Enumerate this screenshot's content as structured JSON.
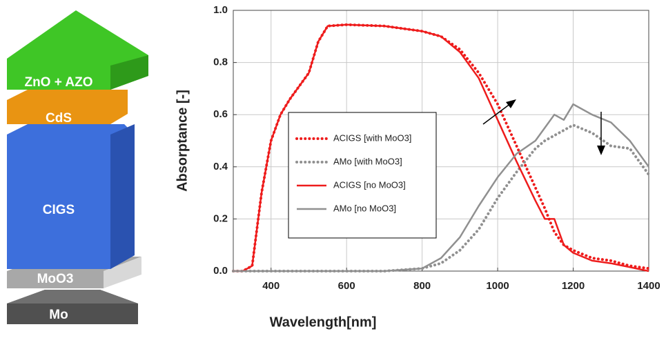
{
  "diagram": {
    "layers": [
      "ZnO + AZO",
      "CdS",
      "CIGS",
      "MoO3",
      "Mo"
    ]
  },
  "chart_data": {
    "type": "line",
    "xlabel": "Wavelength[nm]",
    "ylabel": "Absorptance [-]",
    "xlim": [
      300,
      1400
    ],
    "xticks": [
      400,
      600,
      800,
      1000,
      1200,
      1400
    ],
    "ylim": [
      0,
      1
    ],
    "yticks": [
      {
        "value": 0,
        "label": "0.0"
      },
      0.2,
      0.4,
      0.6,
      0.8,
      {
        "value": 1,
        "label": "1.0"
      }
    ],
    "grid": true,
    "x": [
      300,
      325,
      350,
      375,
      400,
      425,
      450,
      475,
      500,
      525,
      550,
      600,
      700,
      800,
      850,
      900,
      950,
      1000,
      1050,
      1100,
      1125,
      1150,
      1175,
      1200,
      1250,
      1300,
      1350,
      1400
    ],
    "series": [
      {
        "name": "ACIGS [with MoO3]",
        "color": "#ee1c1c",
        "style": "dotted",
        "values": [
          0,
          0,
          0.02,
          0.3,
          0.5,
          0.6,
          0.66,
          0.71,
          0.76,
          0.88,
          0.94,
          0.945,
          0.94,
          0.92,
          0.9,
          0.85,
          0.76,
          0.64,
          0.48,
          0.32,
          0.24,
          0.15,
          0.1,
          0.08,
          0.05,
          0.04,
          0.02,
          0.01
        ]
      },
      {
        "name": "AMo [with MoO3]",
        "color": "#909090",
        "style": "dotted",
        "values": [
          0,
          0,
          0,
          0,
          0,
          0,
          0,
          0,
          0,
          0,
          0,
          0,
          0,
          0.01,
          0.03,
          0.08,
          0.16,
          0.28,
          0.38,
          0.47,
          0.5,
          0.52,
          0.54,
          0.56,
          0.53,
          0.48,
          0.47,
          0.37
        ]
      },
      {
        "name": "ACIGS [no MoO3]",
        "color": "#ee1c1c",
        "style": "solid",
        "values": [
          0,
          0,
          0.02,
          0.3,
          0.5,
          0.6,
          0.66,
          0.71,
          0.76,
          0.88,
          0.94,
          0.945,
          0.94,
          0.92,
          0.9,
          0.84,
          0.74,
          0.58,
          0.42,
          0.27,
          0.2,
          0.2,
          0.1,
          0.07,
          0.04,
          0.03,
          0.015,
          0
        ]
      },
      {
        "name": "AMo [no MoO3]",
        "color": "#909090",
        "style": "solid",
        "values": [
          0,
          0,
          0,
          0,
          0,
          0,
          0,
          0,
          0,
          0,
          0,
          0,
          0,
          0.01,
          0.05,
          0.13,
          0.25,
          0.36,
          0.45,
          0.5,
          0.55,
          0.6,
          0.58,
          0.64,
          0.6,
          0.57,
          0.5,
          0.4
        ]
      }
    ]
  }
}
